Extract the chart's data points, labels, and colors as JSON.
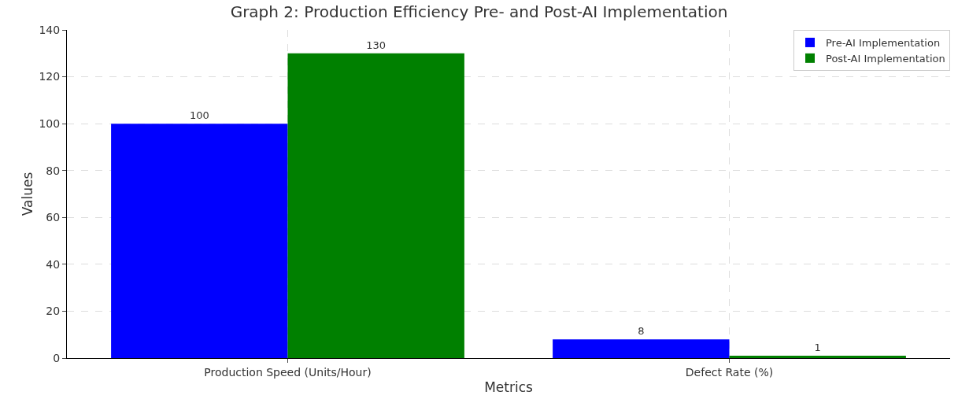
{
  "chart_data": {
    "type": "bar",
    "title": "Graph 2: Production Efficiency Pre- and Post-AI Implementation",
    "xlabel": "Metrics",
    "ylabel": "Values",
    "categories": [
      "Production Speed (Units/Hour)",
      "Defect Rate (%)"
    ],
    "series": [
      {
        "name": "Pre-AI Implementation",
        "color": "#0000ff",
        "values": [
          100,
          8
        ]
      },
      {
        "name": "Post-AI Implementation",
        "color": "#008000",
        "values": [
          130,
          1
        ]
      }
    ],
    "ylim": [
      0,
      140
    ],
    "yticks": [
      0,
      20,
      40,
      60,
      80,
      100,
      120,
      140
    ],
    "grid": true,
    "legend": "top right",
    "data_labels": true
  }
}
